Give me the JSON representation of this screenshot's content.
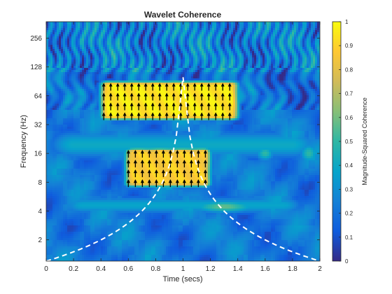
{
  "chart_data": {
    "type": "heatmap",
    "title": "Wavelet Coherence",
    "xlabel": "Time (secs)",
    "ylabel": "Frequency (Hz)",
    "xlim": [
      0,
      2
    ],
    "ylim_hz": [
      1.2,
      380
    ],
    "y_scale": "log2",
    "x_ticks": [
      "0",
      "0.2",
      "0.4",
      "0.6",
      "0.8",
      "1",
      "1.2",
      "1.4",
      "1.6",
      "1.8",
      "2"
    ],
    "y_ticks": [
      "2",
      "4",
      "8",
      "16",
      "32",
      "64",
      "128",
      "256"
    ],
    "colorbar": {
      "label": "Magnitude-Squared Coherence",
      "range": [
        0,
        1
      ],
      "ticks": [
        "0",
        "0.1",
        "0.2",
        "0.3",
        "0.4",
        "0.5",
        "0.6",
        "0.7",
        "0.8",
        "0.9",
        "1"
      ],
      "colormap": "parula",
      "colors": [
        "#352a87",
        "#0f5cdd",
        "#1481d6",
        "#06a4ca",
        "#2eb7a4",
        "#87bf77",
        "#d1bb59",
        "#fec832",
        "#f9fb0e"
      ]
    },
    "high_coherence_regions": [
      {
        "name": "upper",
        "time_range": [
          0.4,
          1.4
        ],
        "freq_range_hz": [
          36,
          90
        ],
        "coherence": 0.95,
        "phase_arrow": "up"
      },
      {
        "name": "lower",
        "time_range": [
          0.58,
          1.2
        ],
        "freq_range_hz": [
          7.2,
          18
        ],
        "coherence": 0.88,
        "phase_arrow": "up"
      }
    ],
    "cone_of_influence": {
      "style": "white dashed",
      "min_time": 1.0,
      "min_freq_hz": 1.2
    }
  }
}
